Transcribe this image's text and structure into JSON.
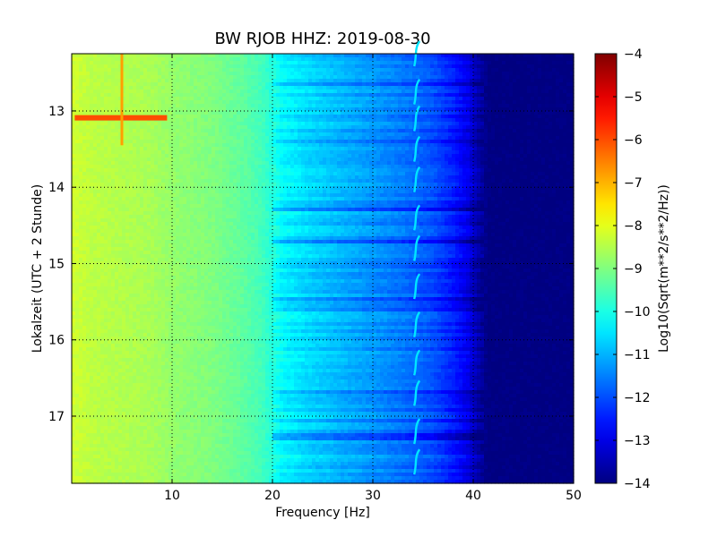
{
  "chart_data": {
    "type": "heatmap",
    "title": "BW RJOB HHZ: 2019-08-30",
    "xlabel": "Frequency [Hz]",
    "ylabel": "Lokalzeit (UTC + 2 Stunde)",
    "xlim": [
      0,
      50
    ],
    "ylim_hours": [
      12.25,
      17.88
    ],
    "y_inverted": true,
    "x_ticks": [
      10,
      20,
      30,
      40,
      50
    ],
    "x_tick_labels": [
      "10",
      "20",
      "30",
      "40",
      "50"
    ],
    "y_ticks": [
      13,
      14,
      15,
      16,
      17
    ],
    "y_tick_labels": [
      "13",
      "14",
      "15",
      "16",
      "17"
    ],
    "grid": true,
    "colormap": "jet",
    "colorbar": {
      "label": "Log10(Sqrt(m**2/s**2/Hz))",
      "min": -14,
      "max": -4,
      "ticks": [
        -4,
        -5,
        -6,
        -7,
        -8,
        -9,
        -10,
        -11,
        -12,
        -13,
        -14
      ],
      "tick_labels": [
        "−4",
        "−5",
        "−6",
        "−7",
        "−8",
        "−9",
        "−10",
        "−11",
        "−12",
        "−13",
        "−14"
      ]
    },
    "spectrum_profile": {
      "frequency_hz": [
        0,
        2,
        5,
        8,
        10,
        14,
        17,
        19,
        21,
        24,
        27,
        30,
        33,
        36,
        38,
        39.5,
        40.5,
        41.5,
        50
      ],
      "log10_amplitude": [
        -8.2,
        -8.4,
        -8.5,
        -8.6,
        -8.8,
        -9.0,
        -9.3,
        -9.6,
        -10.3,
        -10.7,
        -11.0,
        -11.3,
        -11.6,
        -12.0,
        -12.5,
        -13.0,
        -13.6,
        -14.0,
        -14.0
      ]
    },
    "features": [
      {
        "kind": "horizontal_line",
        "hour": 13.09,
        "f_start": 0.3,
        "f_end": 9.5,
        "log10_amplitude": -6.0
      },
      {
        "kind": "vertical_line",
        "frequency_hz": 5.0,
        "h_start": 12.25,
        "h_end": 13.45,
        "log10_amplitude": -6.8
      },
      {
        "kind": "tonal_wiggle",
        "frequency_hz": 34.3,
        "hours": [
          12.25,
          12.75,
          13.1,
          13.5,
          13.9,
          14.4,
          14.8,
          15.3,
          15.8,
          16.3,
          16.7,
          17.2,
          17.6
        ],
        "log10_amplitude": -10.5
      }
    ]
  }
}
